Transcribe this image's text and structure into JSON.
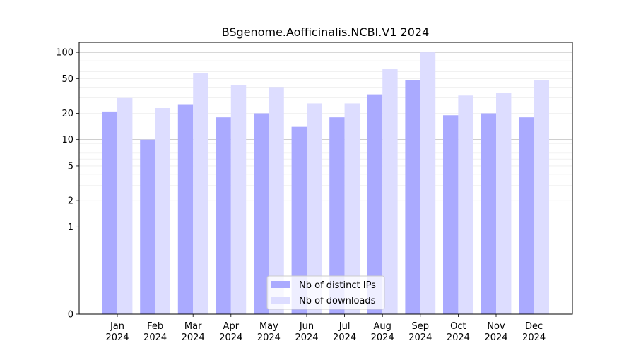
{
  "chart_data": {
    "type": "bar",
    "title": "BSgenome.Aofficinalis.NCBI.V1 2024",
    "xlabel": "",
    "ylabel": "",
    "yscale": "symlog",
    "ylim": [
      0,
      130
    ],
    "yticks": [
      0,
      1,
      2,
      5,
      10,
      20,
      50,
      100
    ],
    "grid": true,
    "legend_position": "bottom-center",
    "categories": [
      "Jan\n2024",
      "Feb\n2024",
      "Mar\n2024",
      "Apr\n2024",
      "May\n2024",
      "Jun\n2024",
      "Jul\n2024",
      "Aug\n2024",
      "Sep\n2024",
      "Oct\n2024",
      "Nov\n2024",
      "Dec\n2024"
    ],
    "series": [
      {
        "name": "Nb of distinct IPs",
        "color": "#aaaaff",
        "values": [
          21,
          10,
          25,
          18,
          20,
          14,
          18,
          33,
          48,
          19,
          20,
          18
        ]
      },
      {
        "name": "Nb of downloads",
        "color": "#ddddff",
        "values": [
          30,
          23,
          58,
          42,
          40,
          26,
          26,
          64,
          100,
          32,
          34,
          48
        ]
      }
    ]
  }
}
